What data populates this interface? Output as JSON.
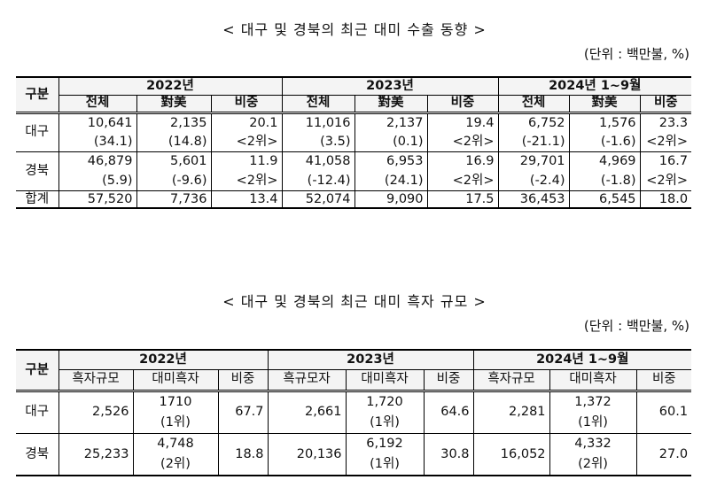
{
  "table1": {
    "title": "< 대구 및 경북의 최근 대미 수출 동향 >",
    "unit": "(단위 : 백만불, %)",
    "corner": "구분",
    "years": [
      "2022년",
      "2023년",
      "2024년 1~9월"
    ],
    "subheaders": [
      "전체",
      "對美",
      "비중",
      "전체",
      "對美",
      "비중",
      "전체",
      "對美",
      "비중"
    ],
    "rows": [
      {
        "label": "대구",
        "values": [
          "10,641",
          "2,135",
          "20.1",
          "11,016",
          "2,137",
          "19.4",
          "6,752",
          "1,576",
          "23.3"
        ],
        "sub": [
          "(34.1)",
          "(14.8)",
          "<2위>",
          "(3.5)",
          "(0.1)",
          "<2위>",
          "(-21.1)",
          "(-1.6)",
          "<2위>"
        ]
      },
      {
        "label": "경북",
        "values": [
          "46,879",
          "5,601",
          "11.9",
          "41,058",
          "6,953",
          "16.9",
          "29,701",
          "4,969",
          "16.7"
        ],
        "sub": [
          "(5.9)",
          "(-9.6)",
          "<2위>",
          "(-12.4)",
          "(24.1)",
          "<2위>",
          "(-2.4)",
          "(-1.8)",
          "<2위>"
        ]
      }
    ],
    "total": {
      "label": "합계",
      "values": [
        "57,520",
        "7,736",
        "13.4",
        "52,074",
        "9,090",
        "17.5",
        "36,453",
        "6,545",
        "18.0"
      ]
    }
  },
  "table2": {
    "title": "< 대구 및 경북의 최근 대미 흑자 규모 >",
    "unit": "(단위 : 백만불, %)",
    "corner": "구분",
    "years": [
      "2022년",
      "2023년",
      "2024년 1~9월"
    ],
    "subheaders": [
      "흑자규모",
      "대미흑자",
      "비중",
      "흑규모자",
      "대미흑자",
      "비중",
      "흑자규모",
      "대미흑자",
      "비중"
    ],
    "rows": [
      {
        "label": "대구",
        "size": [
          "2,526",
          "2,661",
          "2,281"
        ],
        "surplus": [
          "1710",
          "1,720",
          "1,372"
        ],
        "rank": [
          "(1위)",
          "(1위)",
          "(1위)"
        ],
        "share": [
          "67.7",
          "64.6",
          "60.1"
        ]
      },
      {
        "label": "경북",
        "size": [
          "25,233",
          "20,136",
          "16,052"
        ],
        "surplus": [
          "4,748",
          "6,192",
          "4,332"
        ],
        "rank": [
          "(2위)",
          "(1위)",
          "(2위)"
        ],
        "share": [
          "18.8",
          "30.8",
          "27.0"
        ]
      }
    ]
  }
}
